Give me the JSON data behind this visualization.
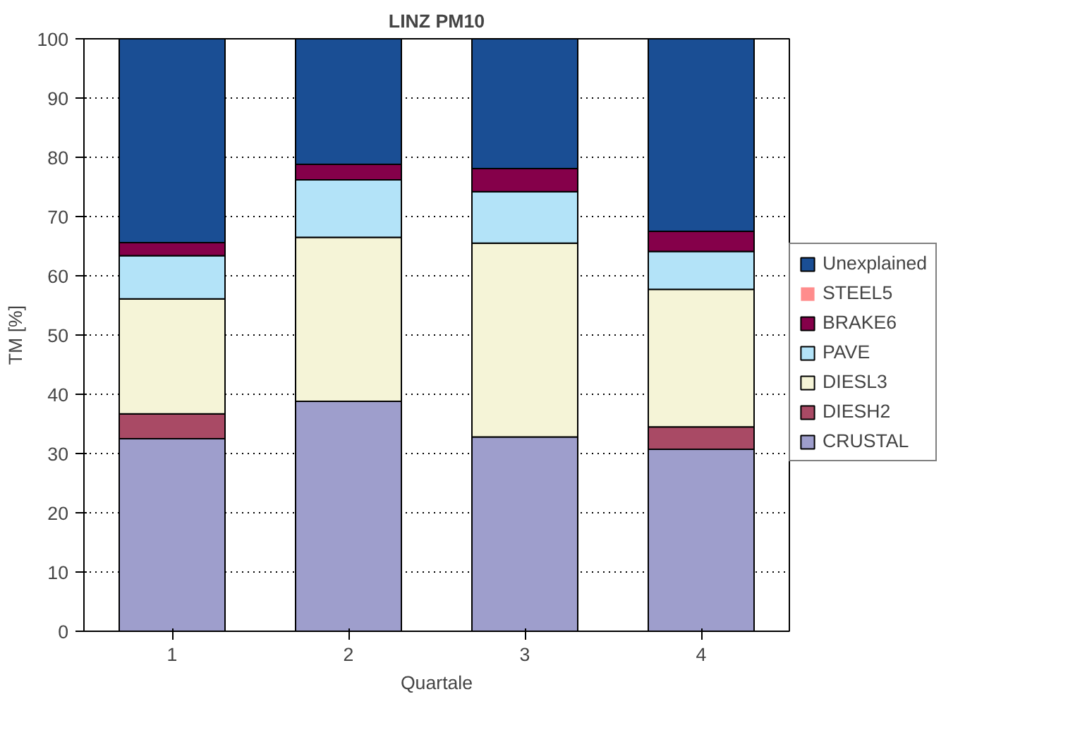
{
  "chart_data": {
    "type": "bar",
    "title": "LINZ PM10",
    "xlabel": "Quartale",
    "ylabel": "TM [%]",
    "categories": [
      "1",
      "2",
      "3",
      "4"
    ],
    "stacked": true,
    "series": [
      {
        "name": "CRUSTAL",
        "color": "#9e9ecc",
        "values": [
          32.5,
          38.8,
          32.8,
          30.7
        ]
      },
      {
        "name": "DIESH2",
        "color": "#a94a65",
        "values": [
          4.2,
          0,
          0,
          3.8
        ]
      },
      {
        "name": "DIESL3",
        "color": "#f5f4d7",
        "values": [
          19.4,
          27.7,
          32.7,
          23.2
        ]
      },
      {
        "name": "PAVE",
        "color": "#b3e3f8",
        "values": [
          7.3,
          9.7,
          8.7,
          6.4
        ]
      },
      {
        "name": "BRAKE6",
        "color": "#85004a",
        "values": [
          2.2,
          2.6,
          3.9,
          3.4
        ]
      },
      {
        "name": "STEEL5",
        "color": "#ff8c8c",
        "values": [
          0,
          0,
          0,
          0
        ]
      },
      {
        "name": "Unexplained",
        "color": "#1a4e94",
        "values": [
          34.4,
          21.2,
          21.9,
          32.5
        ]
      }
    ],
    "ylim": [
      0,
      100
    ],
    "yticks": [
      0,
      10,
      20,
      30,
      40,
      50,
      60,
      70,
      80,
      90,
      100
    ],
    "grid": "y",
    "legend": "right"
  }
}
